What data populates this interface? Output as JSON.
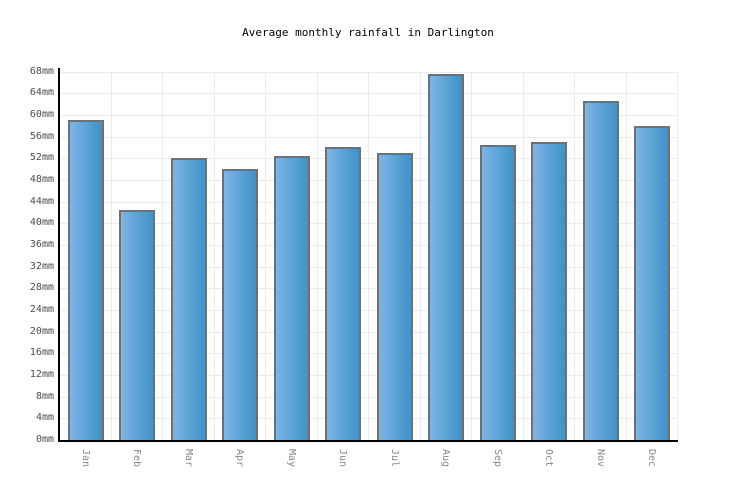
{
  "chart_data": {
    "type": "bar",
    "title": "Average monthly rainfall in Darlington",
    "categories": [
      "Jan",
      "Feb",
      "Mar",
      "Apr",
      "May",
      "Jun",
      "Jul",
      "Aug",
      "Sep",
      "Oct",
      "Nov",
      "Dec"
    ],
    "values": [
      59,
      42.5,
      52,
      50,
      52.5,
      54,
      53,
      67.5,
      54.5,
      55,
      62.5,
      58
    ],
    "unit": "mm",
    "xlabel": "",
    "ylabel": "",
    "ylim": [
      0,
      68
    ],
    "y_tick_step": 4,
    "y_tick_labels": [
      "0mm",
      "4mm",
      "8mm",
      "12mm",
      "16mm",
      "20mm",
      "24mm",
      "28mm",
      "32mm",
      "36mm",
      "40mm",
      "44mm",
      "48mm",
      "52mm",
      "56mm",
      "60mm",
      "64mm",
      "68mm"
    ],
    "grid": true,
    "legend": false,
    "layout_hints": {
      "bar_orientation": "vertical",
      "x_tick_rotation_deg": 90
    },
    "colors": {
      "bar_gradient_left": "#7db5e5",
      "bar_gradient_right": "#3e92c8",
      "bar_border": "#707070",
      "grid_line": "#ececec",
      "axis_line": "#000000",
      "title_text": "#000000",
      "y_tick_text": "#4d4d4d",
      "x_tick_text": "#888888",
      "background": "#ffffff"
    }
  }
}
